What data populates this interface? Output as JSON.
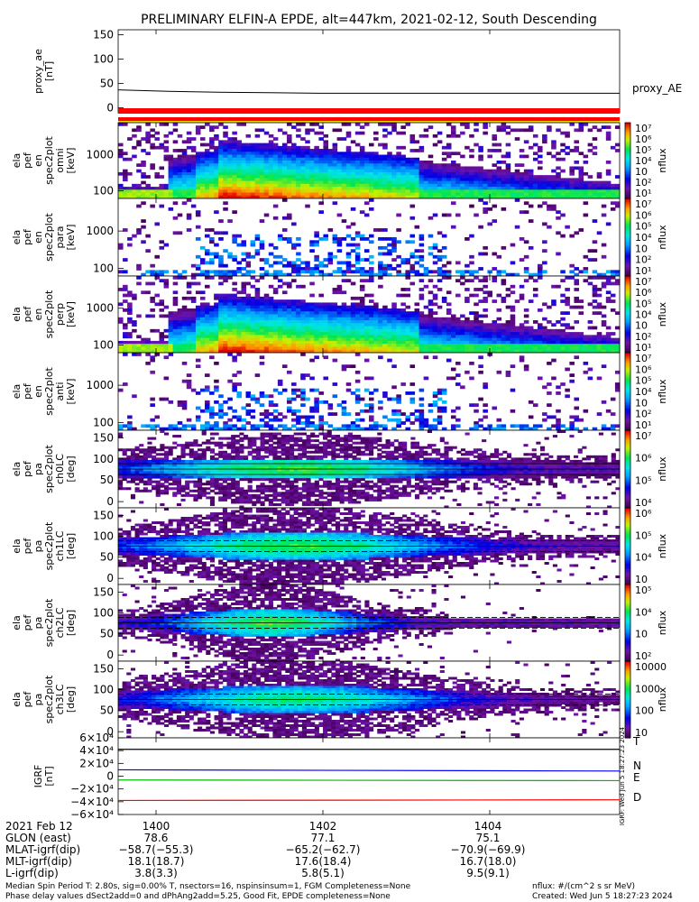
{
  "title": "PRELIMINARY ELFIN-A EPDE, alt=447km, 2021-02-12, South Descending",
  "chart_data": {
    "type": "spectrogram-stack",
    "x_ticks": [
      "1400",
      "1402",
      "1404"
    ],
    "panels": [
      {
        "id": "proxy",
        "ylabel": [
          "proxy_ae",
          "[nT]"
        ],
        "yticks": [
          "150",
          "100",
          "50",
          "0"
        ],
        "legend": "proxy_AE",
        "x": [
          0,
          0.1,
          0.2,
          0.3,
          0.4,
          0.5,
          0.6,
          0.7,
          0.8,
          0.9,
          1.0
        ],
        "y": [
          37,
          34,
          32,
          31,
          30,
          30,
          30,
          30,
          30,
          30,
          30
        ],
        "ylim": [
          -10,
          160
        ]
      },
      {
        "id": "omni",
        "ylabel": [
          "ela",
          "pef",
          "en",
          "spec2plot",
          "omni",
          "[keV]"
        ],
        "yticks": [
          "1000",
          "100"
        ],
        "cbar": {
          "label": "nflux",
          "ticks": [
            "10⁷",
            "10⁶",
            "10⁵",
            "10⁴",
            "10⁳",
            "10²",
            "10¹"
          ]
        }
      },
      {
        "id": "para",
        "ylabel": [
          "ela",
          "pef",
          "en",
          "spec2plot",
          "para",
          "[keV]"
        ],
        "yticks": [
          "1000",
          "100"
        ],
        "cbar": {
          "label": "nflux",
          "ticks": [
            "10⁷",
            "10⁶",
            "10⁵",
            "10⁴",
            "10⁳",
            "10²",
            "10¹"
          ]
        }
      },
      {
        "id": "perp",
        "ylabel": [
          "ela",
          "pef",
          "en",
          "spec2plot",
          "perp",
          "[keV]"
        ],
        "yticks": [
          "1000",
          "100"
        ],
        "cbar": {
          "label": "nflux",
          "ticks": [
            "10⁷",
            "10⁶",
            "10⁵",
            "10⁴",
            "10⁳",
            "10²",
            "10¹"
          ]
        }
      },
      {
        "id": "anti",
        "ylabel": [
          "ela",
          "pef",
          "en",
          "spec2plot",
          "anti",
          "[keV]"
        ],
        "yticks": [
          "1000",
          "100"
        ],
        "cbar": {
          "label": "nflux",
          "ticks": [
            "10⁷",
            "10⁶",
            "10⁵",
            "10⁴",
            "10⁳",
            "10²",
            "10¹"
          ]
        }
      },
      {
        "id": "ch0",
        "ylabel": [
          "ela",
          "pef",
          "pa",
          "spec2plot",
          "ch0LC",
          "[deg]"
        ],
        "yticks": [
          "150",
          "100",
          "50",
          "0"
        ],
        "cbar": {
          "label": "nflux",
          "ticks": [
            "10⁷",
            "10⁶",
            "10⁵",
            "10⁴"
          ]
        }
      },
      {
        "id": "ch1",
        "ylabel": [
          "ela",
          "pef",
          "pa",
          "spec2plot",
          "ch1LC",
          "[deg]"
        ],
        "yticks": [
          "150",
          "100",
          "50",
          "0"
        ],
        "cbar": {
          "label": "nflux",
          "ticks": [
            "10⁶",
            "10⁵",
            "10⁴",
            "10⁳"
          ]
        }
      },
      {
        "id": "ch2",
        "ylabel": [
          "ela",
          "pef",
          "pa",
          "spec2plot",
          "ch2LC",
          "[deg]"
        ],
        "yticks": [
          "150",
          "100",
          "50",
          "0"
        ],
        "cbar": {
          "label": "nflux",
          "ticks": [
            "10⁵",
            "10⁴",
            "10⁳",
            "10²"
          ]
        }
      },
      {
        "id": "ch3",
        "ylabel": [
          "ela",
          "pef",
          "pa",
          "spec2plot",
          "ch3LC",
          "[deg]"
        ],
        "yticks": [
          "150",
          "100",
          "50",
          "0"
        ],
        "cbar": {
          "label": "nflux",
          "ticks": [
            "10000",
            "1000",
            "100",
            "10"
          ]
        }
      },
      {
        "id": "igrf",
        "ylabel": [
          "IGRF",
          "[nT]"
        ],
        "yticks": [
          "6×10⁴",
          "4×10⁴",
          "2×10⁴",
          "0",
          "−2×10⁴",
          "−4×10⁴",
          "−6×10⁴"
        ],
        "ylim": [
          -60000,
          60000
        ],
        "series": [
          {
            "name": "T",
            "color": "#000000",
            "values": [
              42000,
              42000
            ]
          },
          {
            "name": "N",
            "color": "#0000ff",
            "values": [
              10000,
              8000
            ]
          },
          {
            "name": "E",
            "color": "#00bb00",
            "values": [
              -6000,
              -7000
            ]
          },
          {
            "name": "D",
            "color": "#ff0000",
            "values": [
              -38000,
              -37000
            ]
          }
        ],
        "side_text": "IGRF: Wed Jun  5 18:27:23 2024"
      }
    ]
  },
  "footer": {
    "rows": [
      {
        "label": "2021 Feb 12",
        "values": [
          "1400",
          "1402",
          "1404"
        ]
      },
      {
        "label": "GLON (east)",
        "values": [
          "78.6",
          "77.1",
          "75.1"
        ]
      },
      {
        "label": "MLAT-igrf(dip)",
        "values": [
          "−58.7(−55.3)",
          "−65.2(−62.7)",
          "−70.9(−69.9)"
        ]
      },
      {
        "label": "MLT-igrf(dip)",
        "values": [
          "18.1(18.7)",
          "17.6(18.4)",
          "16.7(18.0)"
        ]
      },
      {
        "label": "L-igrf(dip)",
        "values": [
          "3.8(3.3)",
          "5.8(5.1)",
          "9.5(9.1)"
        ]
      }
    ],
    "note1": "Median Spin Period T: 2.80s, sig=0.00% T, nsectors=16, nspinsinsum=1, FGM Completeness=None",
    "note2": "Phase delay values dSect2add=0 and dPhAng2add=5.25, Good Fit, EPDE completeness=None",
    "units": "nflux: #/(cm^2 s sr MeV)",
    "created": "Created: Wed Jun  5 18:27:23 2024"
  }
}
